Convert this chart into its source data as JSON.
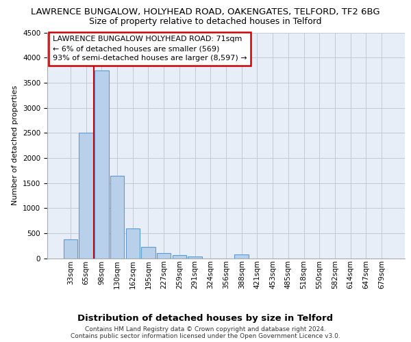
{
  "title": "LAWRENCE BUNGALOW, HOLYHEAD ROAD, OAKENGATES, TELFORD, TF2 6BG",
  "subtitle": "Size of property relative to detached houses in Telford",
  "xlabel": "Distribution of detached houses by size in Telford",
  "ylabel": "Number of detached properties",
  "footer_line1": "Contains HM Land Registry data © Crown copyright and database right 2024.",
  "footer_line2": "Contains public sector information licensed under the Open Government Licence v3.0.",
  "categories": [
    "33sqm",
    "65sqm",
    "98sqm",
    "130sqm",
    "162sqm",
    "195sqm",
    "227sqm",
    "259sqm",
    "291sqm",
    "324sqm",
    "356sqm",
    "388sqm",
    "421sqm",
    "453sqm",
    "485sqm",
    "518sqm",
    "550sqm",
    "582sqm",
    "614sqm",
    "647sqm",
    "679sqm"
  ],
  "values": [
    370,
    2500,
    3750,
    1640,
    590,
    225,
    105,
    60,
    40,
    0,
    0,
    75,
    0,
    0,
    0,
    0,
    0,
    0,
    0,
    0,
    0
  ],
  "bar_color": "#b8d0ea",
  "bar_edge_color": "#5b9bd5",
  "annotation_line1": "LAWRENCE BUNGALOW HOLYHEAD ROAD: 71sqm",
  "annotation_line2": "← 6% of detached houses are smaller (569)",
  "annotation_line3": "93% of semi-detached houses are larger (8,597) →",
  "vline_color": "#cc0000",
  "vline_x": 1.5,
  "ylim": [
    0,
    4500
  ],
  "yticks": [
    0,
    500,
    1000,
    1500,
    2000,
    2500,
    3000,
    3500,
    4000,
    4500
  ],
  "annotation_box_edgecolor": "#cc0000",
  "plot_bg_color": "#e8eef8",
  "grid_color": "#c0cad8",
  "title_fontsize": 9.5,
  "subtitle_fontsize": 9,
  "ylabel_fontsize": 8,
  "xlabel_fontsize": 9.5,
  "tick_fontsize": 7.5,
  "annotation_fontsize": 8,
  "footer_fontsize": 6.5
}
